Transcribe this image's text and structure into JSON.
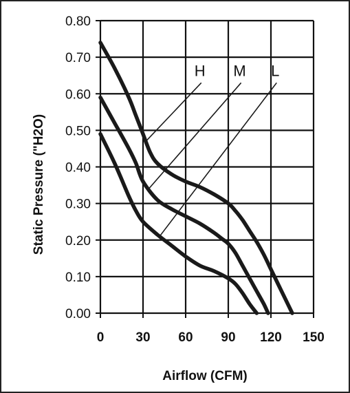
{
  "chart_data": {
    "type": "line",
    "title": "",
    "xlabel": "Airflow (CFM)",
    "ylabel": "Static Pressure (\"H2O)",
    "xlim": [
      0,
      150
    ],
    "ylim": [
      0.0,
      0.8
    ],
    "xticks": [
      "0",
      "30",
      "60",
      "90",
      "120",
      "150"
    ],
    "yticks": [
      "0.00",
      "0.10",
      "0.20",
      "0.30",
      "0.40",
      "0.50",
      "0.60",
      "0.70",
      "0.80"
    ],
    "grid": true,
    "series": [
      {
        "name": "H",
        "x": [
          0,
          10,
          20,
          25,
          30,
          35,
          40,
          50,
          60,
          70,
          80,
          90,
          95,
          100,
          105,
          110,
          115,
          120,
          125,
          130,
          135
        ],
        "y": [
          0.74,
          0.67,
          0.59,
          0.54,
          0.49,
          0.44,
          0.41,
          0.38,
          0.36,
          0.345,
          0.325,
          0.3,
          0.28,
          0.255,
          0.225,
          0.195,
          0.16,
          0.12,
          0.08,
          0.04,
          0.0
        ]
      },
      {
        "name": "M",
        "x": [
          0,
          10,
          20,
          25,
          30,
          40,
          50,
          60,
          70,
          80,
          85,
          90,
          95,
          100,
          105,
          110,
          115,
          118
        ],
        "y": [
          0.59,
          0.52,
          0.45,
          0.41,
          0.36,
          0.31,
          0.285,
          0.265,
          0.245,
          0.22,
          0.205,
          0.19,
          0.165,
          0.13,
          0.095,
          0.06,
          0.025,
          0.0
        ]
      },
      {
        "name": "L",
        "x": [
          0,
          10,
          20,
          25,
          30,
          40,
          50,
          60,
          70,
          80,
          90,
          95,
          100,
          105,
          110
        ],
        "y": [
          0.49,
          0.41,
          0.32,
          0.28,
          0.25,
          0.215,
          0.185,
          0.155,
          0.13,
          0.115,
          0.095,
          0.08,
          0.055,
          0.025,
          0.0
        ]
      }
    ],
    "annotations": [
      {
        "text": "H",
        "series": "H",
        "x": 71,
        "y": 0.63
      },
      {
        "text": "M",
        "series": "M",
        "x": 99,
        "y": 0.63
      },
      {
        "text": "L",
        "series": "L",
        "x": 124,
        "y": 0.63
      }
    ]
  },
  "colors": {
    "curve": "#1a1a1a",
    "grid": "#111111",
    "background": "#ffffff"
  }
}
